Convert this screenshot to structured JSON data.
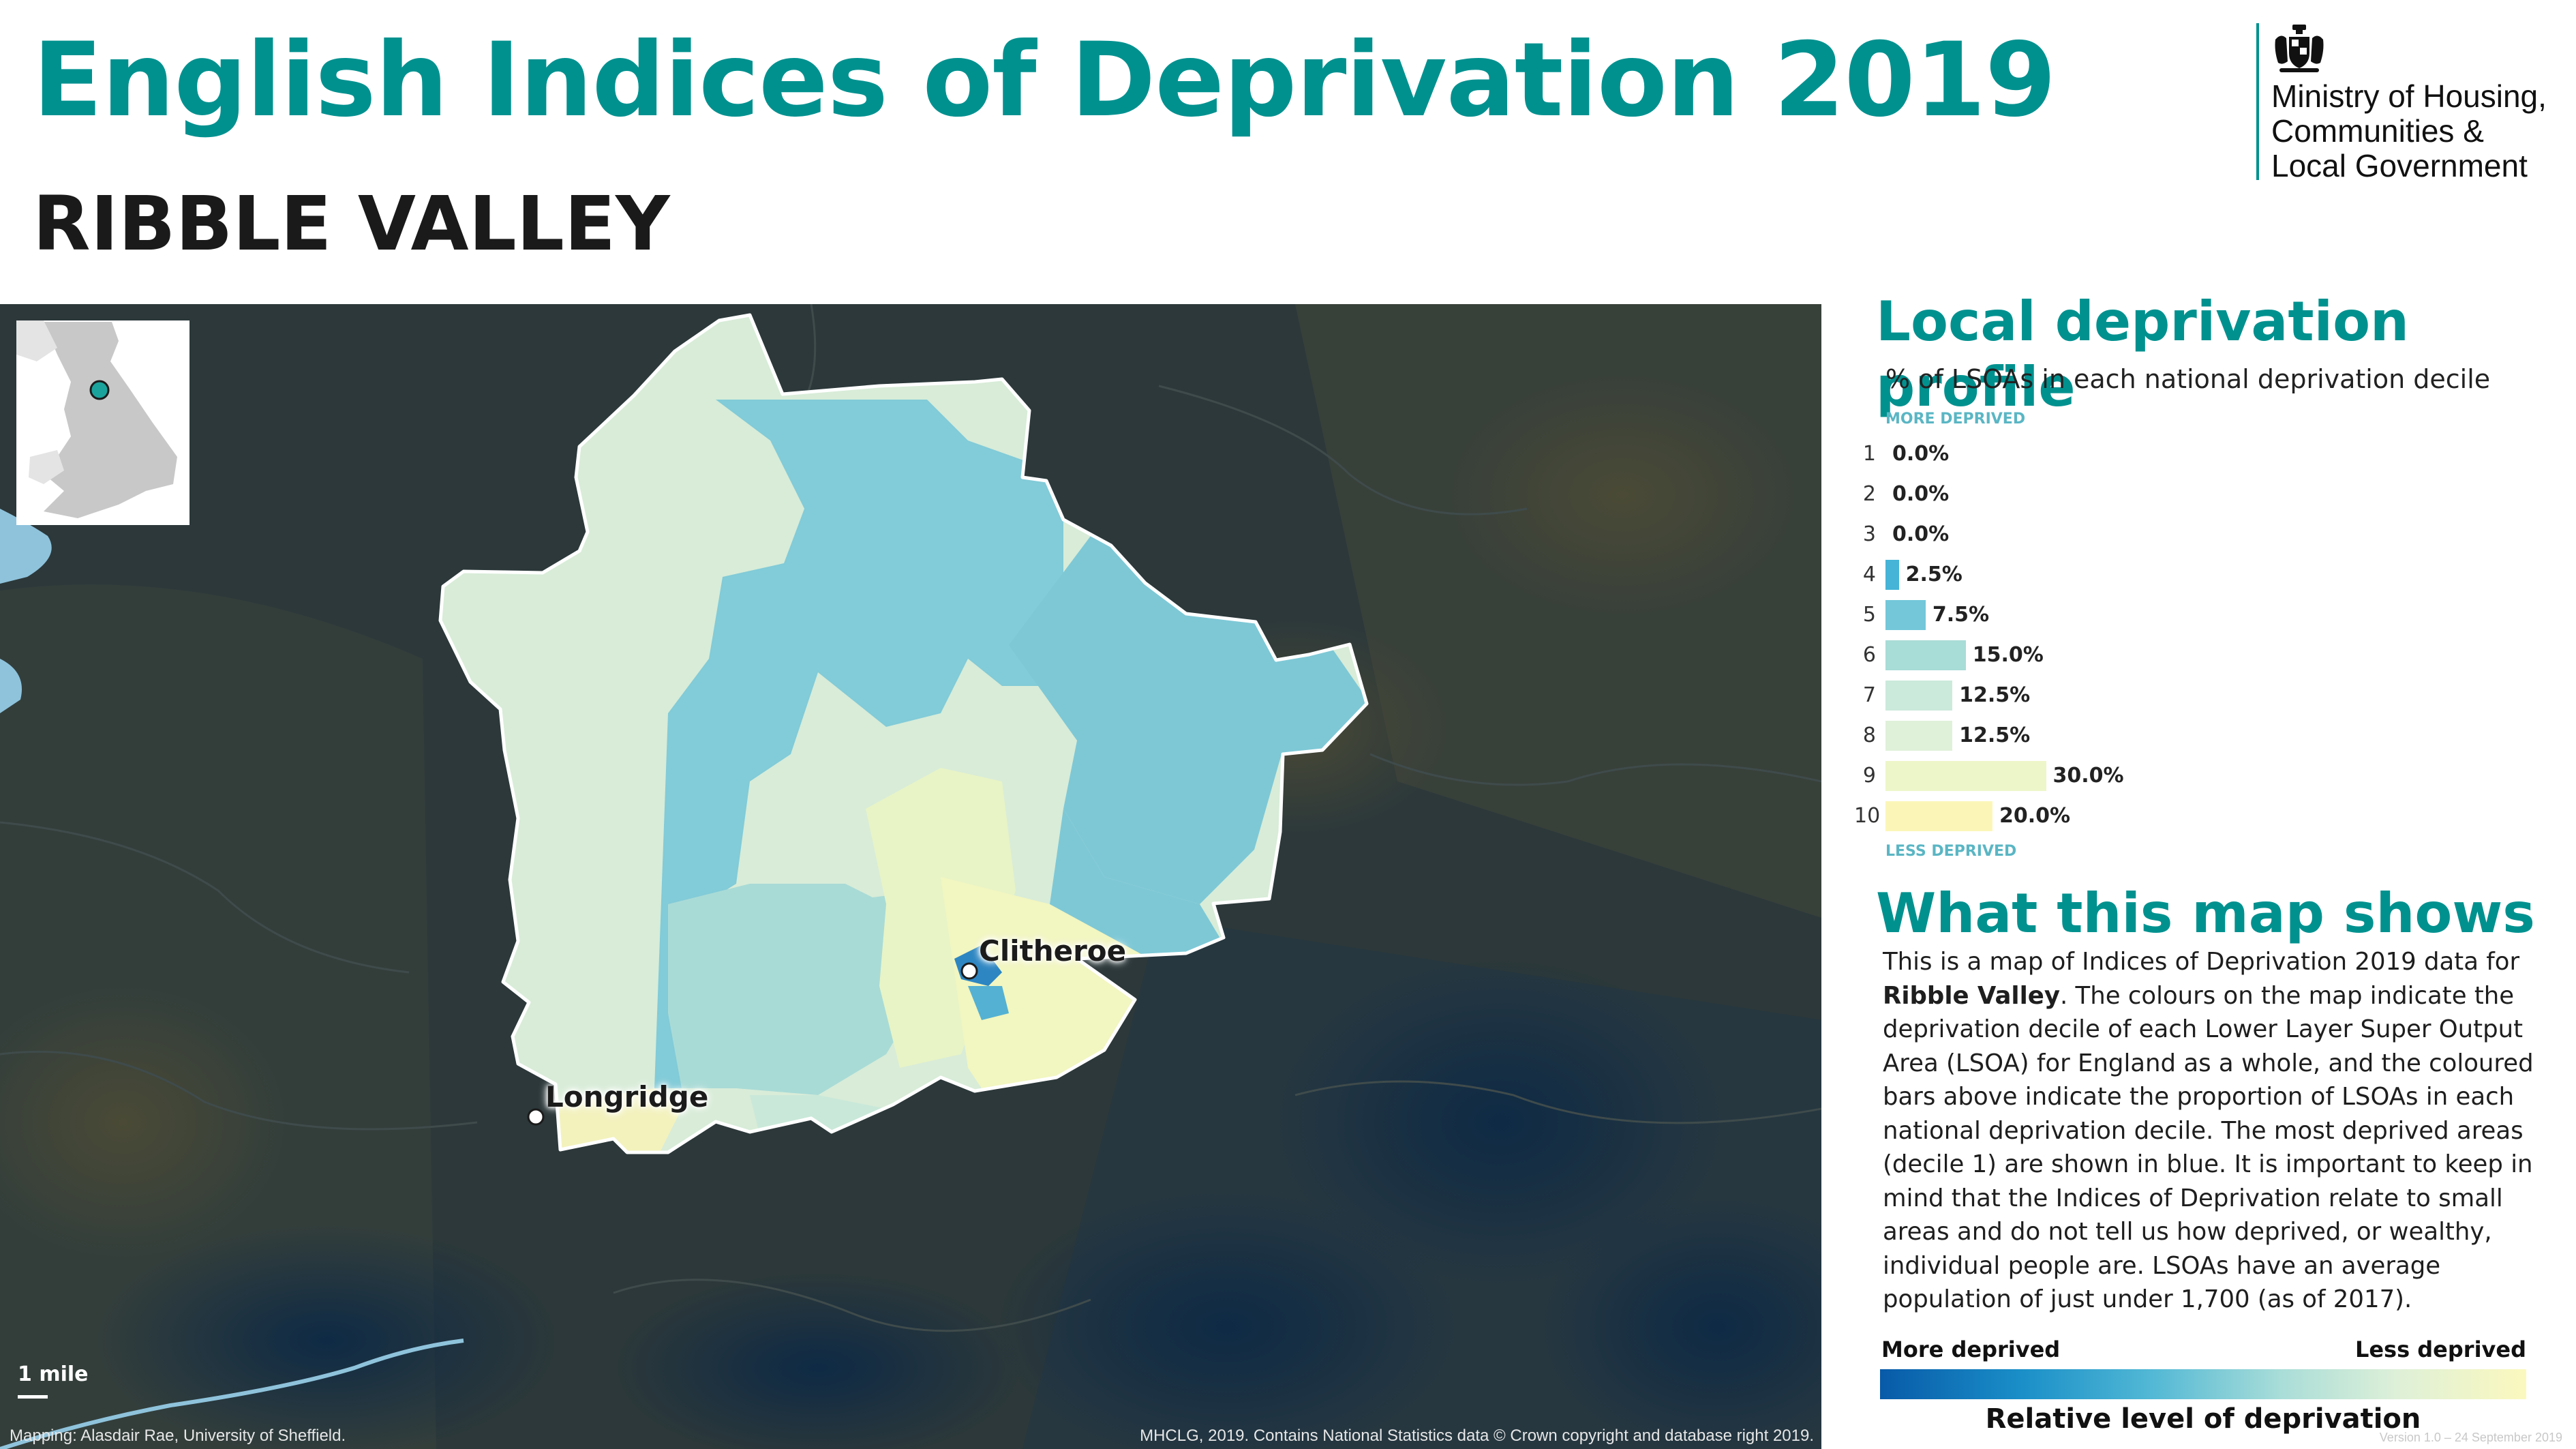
{
  "header": {
    "title": "English Indices of Deprivation 2019",
    "area_name": "RIBBLE VALLEY",
    "department": [
      "Ministry of Housing,",
      "Communities &",
      "Local Government"
    ]
  },
  "map": {
    "places": [
      {
        "name": "Clitheroe"
      },
      {
        "name": "Longridge"
      }
    ],
    "scale_label": "1 mile",
    "credit_left": "Mapping: Alasdair Rae, University of Sheffield.",
    "credit_right": "MHCLG, 2019. Contains National Statistics data © Crown copyright and database right 2019."
  },
  "profile": {
    "title": "Local deprivation profile",
    "subtitle": "% of LSOAs in each national deprivation decile",
    "top_label": "MORE DEPRIVED",
    "bottom_label": "LESS DEPRIVED",
    "deciles": [
      {
        "decile": "1",
        "value": 0.0,
        "label": "0.0%",
        "color": "#0b63ae"
      },
      {
        "decile": "2",
        "value": 0.0,
        "label": "0.0%",
        "color": "#1786c2"
      },
      {
        "decile": "3",
        "value": 0.0,
        "label": "0.0%",
        "color": "#2aa2cf"
      },
      {
        "decile": "4",
        "value": 2.5,
        "label": "2.5%",
        "color": "#45b4d6"
      },
      {
        "decile": "5",
        "value": 7.5,
        "label": "7.5%",
        "color": "#73c7d9"
      },
      {
        "decile": "6",
        "value": 15.0,
        "label": "15.0%",
        "color": "#a8dcd6"
      },
      {
        "decile": "7",
        "value": 12.5,
        "label": "12.5%",
        "color": "#cbeadb"
      },
      {
        "decile": "8",
        "value": 12.5,
        "label": "12.5%",
        "color": "#dff1d9"
      },
      {
        "decile": "9",
        "value": 30.0,
        "label": "30.0%",
        "color": "#edf6c8"
      },
      {
        "decile": "10",
        "value": 20.0,
        "label": "20.0%",
        "color": "#fbf6b8"
      }
    ]
  },
  "explainer": {
    "title": "What this map shows",
    "text_before": "This is a map of Indices of Deprivation 2019 data for ",
    "text_bold": "Ribble Valley",
    "text_after": ". The colours on the map indicate the deprivation decile of each Lower Layer Super Output Area (LSOA) for England as a whole, and the coloured bars above indicate the proportion of LSOAs in each national deprivation decile. The most deprived areas (decile 1) are shown in blue. It is important to keep in mind that the Indices of Deprivation relate to small areas and do not tell us how deprived, or wealthy, individual people are. LSOAs have an average population of just under 1,700 (as of 2017)."
  },
  "legend": {
    "left_label": "More deprived",
    "right_label": "Less deprived",
    "title": "Relative level of deprivation"
  },
  "footer": {
    "version": "Version 1.0 – 24 September 2019"
  },
  "colors": {
    "accent": "#00918f",
    "map_background": "#2b3739",
    "boundary": "#ffffff"
  }
}
